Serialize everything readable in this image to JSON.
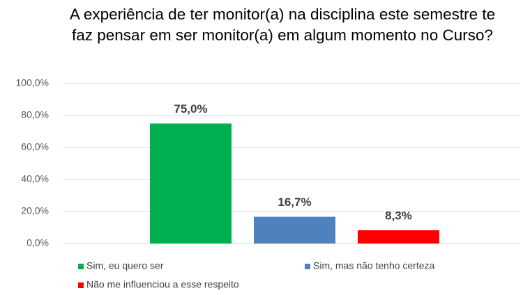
{
  "chart_data": {
    "type": "bar",
    "title": "A experiência de ter monitor(a) na disciplina este semestre te faz pensar em ser monitor(a) em algum momento no Curso?",
    "categories": [
      null
    ],
    "series": [
      {
        "name": "Sim, eu quero ser",
        "color": "#00b050",
        "values": [
          75
        ],
        "value_labels": [
          "75,0%"
        ]
      },
      {
        "name": "Sim, mas não tenho certeza",
        "color": "#4f81bd",
        "values": [
          16.7
        ],
        "value_labels": [
          "16,7%"
        ]
      },
      {
        "name": "Não me influenciou a esse respeito",
        "color": "#ff0000",
        "values": [
          8.3
        ],
        "value_labels": [
          "8,3%"
        ]
      }
    ],
    "ylim": [
      0,
      100
    ],
    "yticks": [
      {
        "value": 0,
        "label": "0,0%"
      },
      {
        "value": 20,
        "label": "20,0%"
      },
      {
        "value": 40,
        "label": "40,0%"
      },
      {
        "value": 60,
        "label": "60,0%"
      },
      {
        "value": 80,
        "label": "80,0%"
      },
      {
        "value": 100,
        "label": "100,0%"
      }
    ],
    "grid": true,
    "legend": "bottom"
  }
}
